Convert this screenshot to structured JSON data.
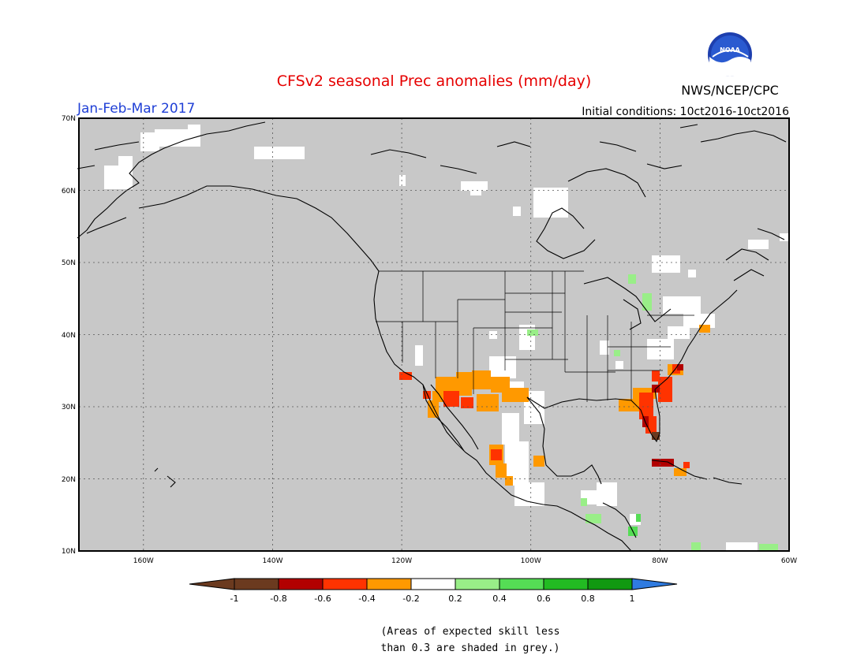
{
  "title": "CFSv2 seasonal Prec anomalies (mm/day)",
  "period": "Jan-Feb-Mar 2017",
  "initial_conditions": "Initial conditions: 10ct2016-10ct2016",
  "org": "NWS/NCEP/CPC",
  "logo_text": "NOAA",
  "lat_ticks": [
    "70N",
    "60N",
    "50N",
    "40N",
    "30N",
    "20N",
    "10N"
  ],
  "lon_ticks": [
    "160W",
    "140W",
    "120W",
    "100W",
    "80W",
    "60W"
  ],
  "colorbar": {
    "labels": [
      "-1",
      "-0.8",
      "-0.6",
      "-0.4",
      "-0.2",
      "0.2",
      "0.4",
      "0.6",
      "0.8",
      "1"
    ],
    "colors": [
      "#6b3a1f",
      "#b20000",
      "#ff3300",
      "#ff9900",
      "#ffffff",
      "#99ee88",
      "#55dd55",
      "#22bb22",
      "#119911",
      "#2f7be0"
    ]
  },
  "note_line1": "(Areas of expected skill less",
  "note_line2": "than 0.3 are shaded in grey.)",
  "map": {
    "grey_color": "#c8c8c8",
    "extent": {
      "lon": [
        -170,
        -60
      ],
      "lat": [
        10,
        70
      ]
    }
  }
}
